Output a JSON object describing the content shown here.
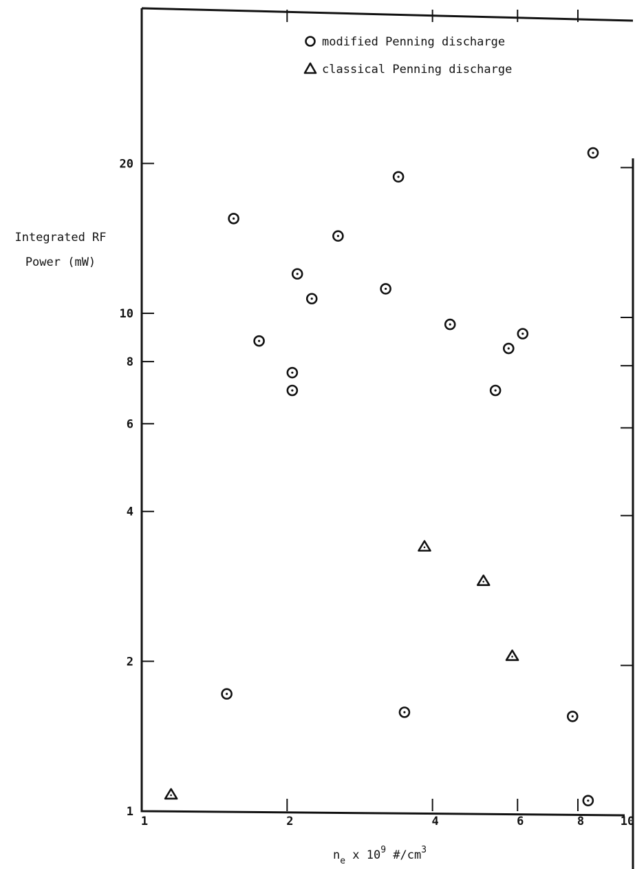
{
  "chart_data": {
    "type": "scatter",
    "title": "",
    "xlabel_prefix": "n",
    "xlabel_sub": "e",
    "xlabel_mid": " x 10",
    "xlabel_sup": "9",
    "xlabel_unit": " #/cm",
    "xlabel_unit_sup": "3",
    "ylabel_line1": "Integrated RF",
    "ylabel_line2": "Power (mW)",
    "x_scale": "log",
    "y_scale": "log",
    "xlim": [
      1,
      10
    ],
    "ylim": [
      1,
      30
    ],
    "x_ticks": [
      1,
      2,
      4,
      6,
      8,
      10
    ],
    "x_tick_labels": [
      "1",
      "2",
      "4",
      "6",
      "8",
      "10"
    ],
    "y_ticks": [
      1,
      2,
      4,
      6,
      8,
      10,
      20
    ],
    "y_tick_labels": [
      "1",
      "2",
      "4",
      "6",
      "8",
      "10",
      "20"
    ],
    "grid": false,
    "legend": "top-center",
    "series": [
      {
        "name": "modified Penning discharge",
        "marker": "circle",
        "points": [
          [
            1.5,
            1.72
          ],
          [
            1.55,
            15.5
          ],
          [
            1.75,
            8.8
          ],
          [
            2.05,
            7.6
          ],
          [
            2.05,
            7.0
          ],
          [
            2.1,
            12.0
          ],
          [
            2.25,
            10.7
          ],
          [
            2.55,
            14.3
          ],
          [
            3.2,
            11.2
          ],
          [
            3.4,
            18.8
          ],
          [
            3.5,
            1.58
          ],
          [
            4.35,
            9.5
          ],
          [
            5.4,
            7.0
          ],
          [
            5.75,
            8.5
          ],
          [
            6.15,
            9.1
          ],
          [
            7.8,
            1.55
          ],
          [
            8.4,
            1.05
          ],
          [
            8.6,
            21.0
          ]
        ]
      },
      {
        "name": "classical Penning discharge",
        "marker": "triangle",
        "points": [
          [
            1.15,
            1.08
          ],
          [
            3.85,
            3.4
          ],
          [
            5.1,
            2.9
          ],
          [
            5.85,
            2.05
          ]
        ]
      }
    ]
  }
}
